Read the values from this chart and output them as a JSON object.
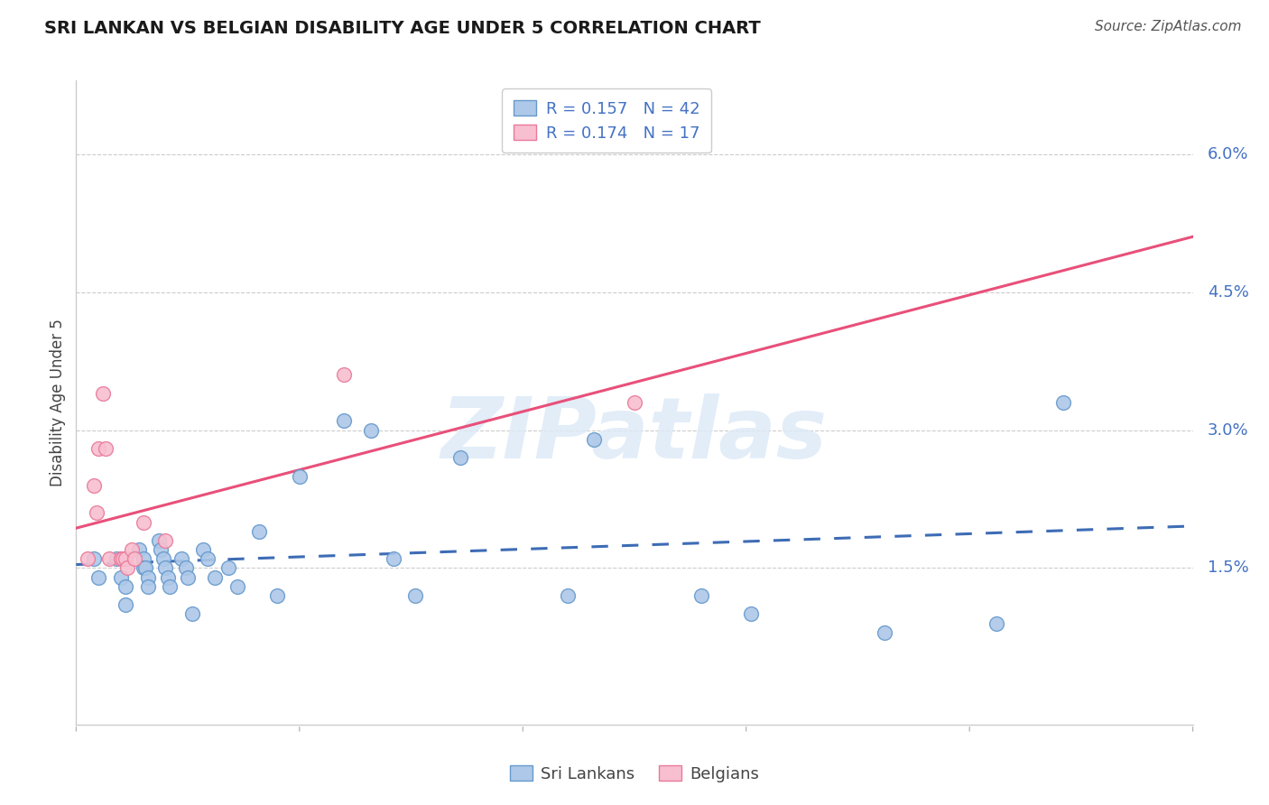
{
  "title": "SRI LANKAN VS BELGIAN DISABILITY AGE UNDER 5 CORRELATION CHART",
  "source": "Source: ZipAtlas.com",
  "ylabel": "Disability Age Under 5",
  "xlim": [
    0.0,
    0.5
  ],
  "ylim": [
    -0.002,
    0.068
  ],
  "ytick_vals": [
    0.015,
    0.03,
    0.045,
    0.06
  ],
  "ytick_labels": [
    "1.5%",
    "3.0%",
    "4.5%",
    "6.0%"
  ],
  "xtick_vals": [
    0.0,
    0.1,
    0.2,
    0.3,
    0.4,
    0.5
  ],
  "sri_lankans_R": "0.157",
  "sri_lankans_N": "42",
  "belgians_R": "0.174",
  "belgians_N": "17",
  "sri_lanka_fill": "#adc8e8",
  "sri_lanka_edge": "#6699cc",
  "belgian_fill": "#f8bfd0",
  "belgian_edge": "#e87a9a",
  "reg_sri_color": "#3d6cb5",
  "reg_bel_color": "#e8507a",
  "background_color": "#ffffff",
  "watermark_text": "ZIPatlas",
  "watermark_color": "#ddeaf7",
  "sri_lankans_x": [
    0.008,
    0.01,
    0.018,
    0.02,
    0.022,
    0.022,
    0.028,
    0.03,
    0.03,
    0.031,
    0.032,
    0.032,
    0.037,
    0.038,
    0.039,
    0.04,
    0.041,
    0.042,
    0.047,
    0.049,
    0.05,
    0.052,
    0.057,
    0.059,
    0.062,
    0.068,
    0.072,
    0.082,
    0.09,
    0.1,
    0.12,
    0.132,
    0.142,
    0.152,
    0.172,
    0.22,
    0.232,
    0.28,
    0.302,
    0.362,
    0.412,
    0.442
  ],
  "sri_lankans_y": [
    0.016,
    0.014,
    0.016,
    0.014,
    0.013,
    0.011,
    0.017,
    0.016,
    0.015,
    0.015,
    0.014,
    0.013,
    0.018,
    0.017,
    0.016,
    0.015,
    0.014,
    0.013,
    0.016,
    0.015,
    0.014,
    0.01,
    0.017,
    0.016,
    0.014,
    0.015,
    0.013,
    0.019,
    0.012,
    0.025,
    0.031,
    0.03,
    0.016,
    0.012,
    0.027,
    0.012,
    0.029,
    0.012,
    0.01,
    0.008,
    0.009,
    0.033
  ],
  "belgians_x": [
    0.005,
    0.008,
    0.009,
    0.01,
    0.012,
    0.013,
    0.015,
    0.02,
    0.021,
    0.022,
    0.023,
    0.025,
    0.026,
    0.03,
    0.04,
    0.12,
    0.25
  ],
  "belgians_y": [
    0.016,
    0.024,
    0.021,
    0.028,
    0.034,
    0.028,
    0.016,
    0.016,
    0.016,
    0.016,
    0.015,
    0.017,
    0.016,
    0.02,
    0.018,
    0.036,
    0.033
  ]
}
